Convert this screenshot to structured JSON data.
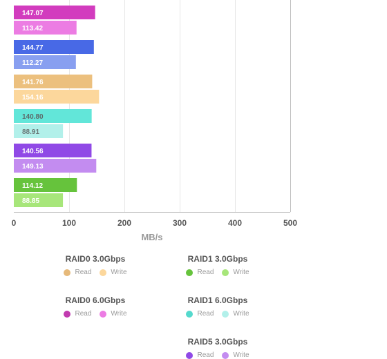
{
  "chart_data": {
    "type": "bar",
    "orientation": "horizontal",
    "xlabel": "MB/s",
    "xlim": [
      0,
      500
    ],
    "xticks": [
      0,
      100,
      200,
      300,
      400,
      500
    ],
    "grid": true,
    "legend_position": "bottom",
    "bars": [
      {
        "series": "RAID0 6.0Gbps",
        "metric": "Read",
        "value": 147.07,
        "label": "147.07",
        "color": "#d23cbe",
        "label_color": "#ffffff"
      },
      {
        "series": "RAID0 6.0Gbps",
        "metric": "Write",
        "value": 113.42,
        "label": "113.42",
        "color": "#ec7ce3",
        "label_color": "#ffffff"
      },
      {
        "series": "RAID5 6.0Gbps",
        "metric": "Read",
        "value": 144.77,
        "label": "144.77",
        "color": "#4869e6",
        "label_color": "#ffffff"
      },
      {
        "series": "RAID5 6.0Gbps",
        "metric": "Write",
        "value": 112.27,
        "label": "112.27",
        "color": "#889ff0",
        "label_color": "#ffffff"
      },
      {
        "series": "RAID0 3.0Gbps",
        "metric": "Read",
        "value": 141.76,
        "label": "141.76",
        "color": "#ecc07e",
        "label_color": "#ffffff"
      },
      {
        "series": "RAID0 3.0Gbps",
        "metric": "Write",
        "value": 154.16,
        "label": "154.16",
        "color": "#fcd79c",
        "label_color": "#ffffff"
      },
      {
        "series": "RAID1 6.0Gbps",
        "metric": "Read",
        "value": 140.8,
        "label": "140.80",
        "color": "#62e6d9",
        "label_color": "#5c6a6a"
      },
      {
        "series": "RAID1 6.0Gbps",
        "metric": "Write",
        "value": 88.91,
        "label": "88.91",
        "color": "#b2f0ea",
        "label_color": "#6a7676"
      },
      {
        "series": "RAID5 3.0Gbps",
        "metric": "Read",
        "value": 140.56,
        "label": "140.56",
        "color": "#9049e6",
        "label_color": "#ffffff"
      },
      {
        "series": "RAID5 3.0Gbps",
        "metric": "Write",
        "value": 149.13,
        "label": "149.13",
        "color": "#c38cf0",
        "label_color": "#ffffff"
      },
      {
        "series": "RAID1 3.0Gbps",
        "metric": "Read",
        "value": 114.12,
        "label": "114.12",
        "color": "#66c33c",
        "label_color": "#ffffff"
      },
      {
        "series": "RAID1 3.0Gbps",
        "metric": "Write",
        "value": 88.85,
        "label": "88.85",
        "color": "#a7e67a",
        "label_color": "#ffffff"
      }
    ],
    "legend": [
      {
        "title": "RAID0 3.0Gbps",
        "read_label": "Read",
        "write_label": "Write",
        "read_color": "#e6b97a",
        "write_color": "#fcd79c"
      },
      {
        "title": "RAID1 3.0Gbps",
        "read_label": "Read",
        "write_label": "Write",
        "read_color": "#66c33c",
        "write_color": "#a7e67a"
      },
      {
        "title": "RAID0 6.0Gbps",
        "read_label": "Read",
        "write_label": "Write",
        "read_color": "#c23bb0",
        "write_color": "#ec7ce3"
      },
      {
        "title": "RAID1 6.0Gbps",
        "read_label": "Read",
        "write_label": "Write",
        "read_color": "#55d9cd",
        "write_color": "#b2f0ea"
      },
      {
        "title": "RAID5 3.0Gbps",
        "read_label": "Read",
        "write_label": "Write",
        "read_color": "#9049e6",
        "write_color": "#c38cf0"
      }
    ]
  }
}
